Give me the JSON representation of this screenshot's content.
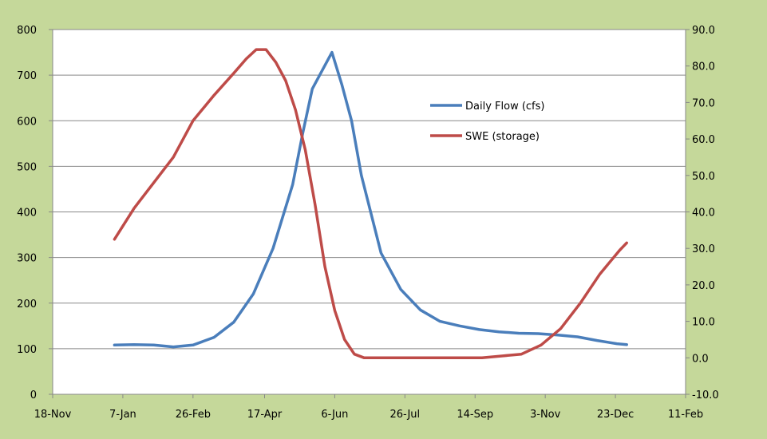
{
  "chart_data": {
    "type": "line",
    "title": "",
    "xlabel": "",
    "ylabel": "",
    "x_ticks": [
      "18-Nov",
      "7-Jan",
      "26-Feb",
      "17-Apr",
      "6-Jun",
      "26-Jul",
      "14-Sep",
      "3-Nov",
      "23-Dec",
      "11-Feb"
    ],
    "xlim": [
      "18-Nov",
      "11-Feb"
    ],
    "y_left": {
      "ticks": [
        "0",
        "100",
        "200",
        "300",
        "400",
        "500",
        "600",
        "700",
        "800"
      ],
      "lim": [
        0,
        800
      ]
    },
    "y_right": {
      "ticks": [
        "-10.0",
        "0.0",
        "10.0",
        "20.0",
        "30.0",
        "40.0",
        "50.0",
        "60.0",
        "70.0",
        "80.0",
        "90.0"
      ],
      "lim": [
        -10,
        90
      ]
    },
    "grid": "horizontal",
    "legend_position": "upper-right",
    "background_color": "#c5d89a",
    "plot_background": "#ffffff",
    "series": [
      {
        "name": "Daily Flow (cfs)",
        "axis": "left",
        "color": "#4a7ebb",
        "points": [
          [
            "1-Jan",
            108
          ],
          [
            "15-Jan",
            109
          ],
          [
            "29-Jan",
            108
          ],
          [
            "12-Feb",
            104
          ],
          [
            "26-Feb",
            108
          ],
          [
            "12-Mar",
            125
          ],
          [
            "26-Mar",
            158
          ],
          [
            "9-Apr",
            220
          ],
          [
            "23-Apr",
            320
          ],
          [
            "7-May",
            460
          ],
          [
            "14-May",
            570
          ],
          [
            "21-May",
            670
          ],
          [
            "28-May",
            710
          ],
          [
            "4-Jun",
            750
          ],
          [
            "11-Jun",
            680
          ],
          [
            "18-Jun",
            600
          ],
          [
            "25-Jun",
            480
          ],
          [
            "9-Jul",
            310
          ],
          [
            "23-Jul",
            230
          ],
          [
            "6-Aug",
            185
          ],
          [
            "20-Aug",
            160
          ],
          [
            "3-Sep",
            150
          ],
          [
            "17-Sep",
            142
          ],
          [
            "1-Oct",
            137
          ],
          [
            "15-Oct",
            134
          ],
          [
            "29-Oct",
            133
          ],
          [
            "12-Nov",
            130
          ],
          [
            "26-Nov",
            126
          ],
          [
            "10-Dec",
            118
          ],
          [
            "24-Dec",
            111
          ],
          [
            "31-Dec",
            109
          ]
        ]
      },
      {
        "name": "SWE (storage)",
        "axis": "right",
        "color": "#be4b48",
        "points": [
          [
            "1-Jan",
            32.5
          ],
          [
            "15-Jan",
            41
          ],
          [
            "29-Jan",
            48
          ],
          [
            "12-Feb",
            55
          ],
          [
            "26-Feb",
            65
          ],
          [
            "12-Mar",
            72
          ],
          [
            "26-Mar",
            78
          ],
          [
            "4-Apr",
            82
          ],
          [
            "11-Apr",
            84.5
          ],
          [
            "18-Apr",
            84.5
          ],
          [
            "25-Apr",
            81
          ],
          [
            "2-May",
            76
          ],
          [
            "9-May",
            68
          ],
          [
            "16-May",
            57
          ],
          [
            "23-May",
            42
          ],
          [
            "30-May",
            25
          ],
          [
            "6-Jun",
            13
          ],
          [
            "13-Jun",
            5
          ],
          [
            "20-Jun",
            1
          ],
          [
            "27-Jun",
            0
          ],
          [
            "25-Jul",
            0
          ],
          [
            "22-Aug",
            0
          ],
          [
            "19-Sep",
            0
          ],
          [
            "3-Oct",
            0.5
          ],
          [
            "17-Oct",
            1
          ],
          [
            "31-Oct",
            3.5
          ],
          [
            "14-Nov",
            8
          ],
          [
            "28-Nov",
            15
          ],
          [
            "12-Dec",
            23
          ],
          [
            "26-Dec",
            29.5
          ],
          [
            "31-Dec",
            31.5
          ]
        ]
      }
    ]
  }
}
